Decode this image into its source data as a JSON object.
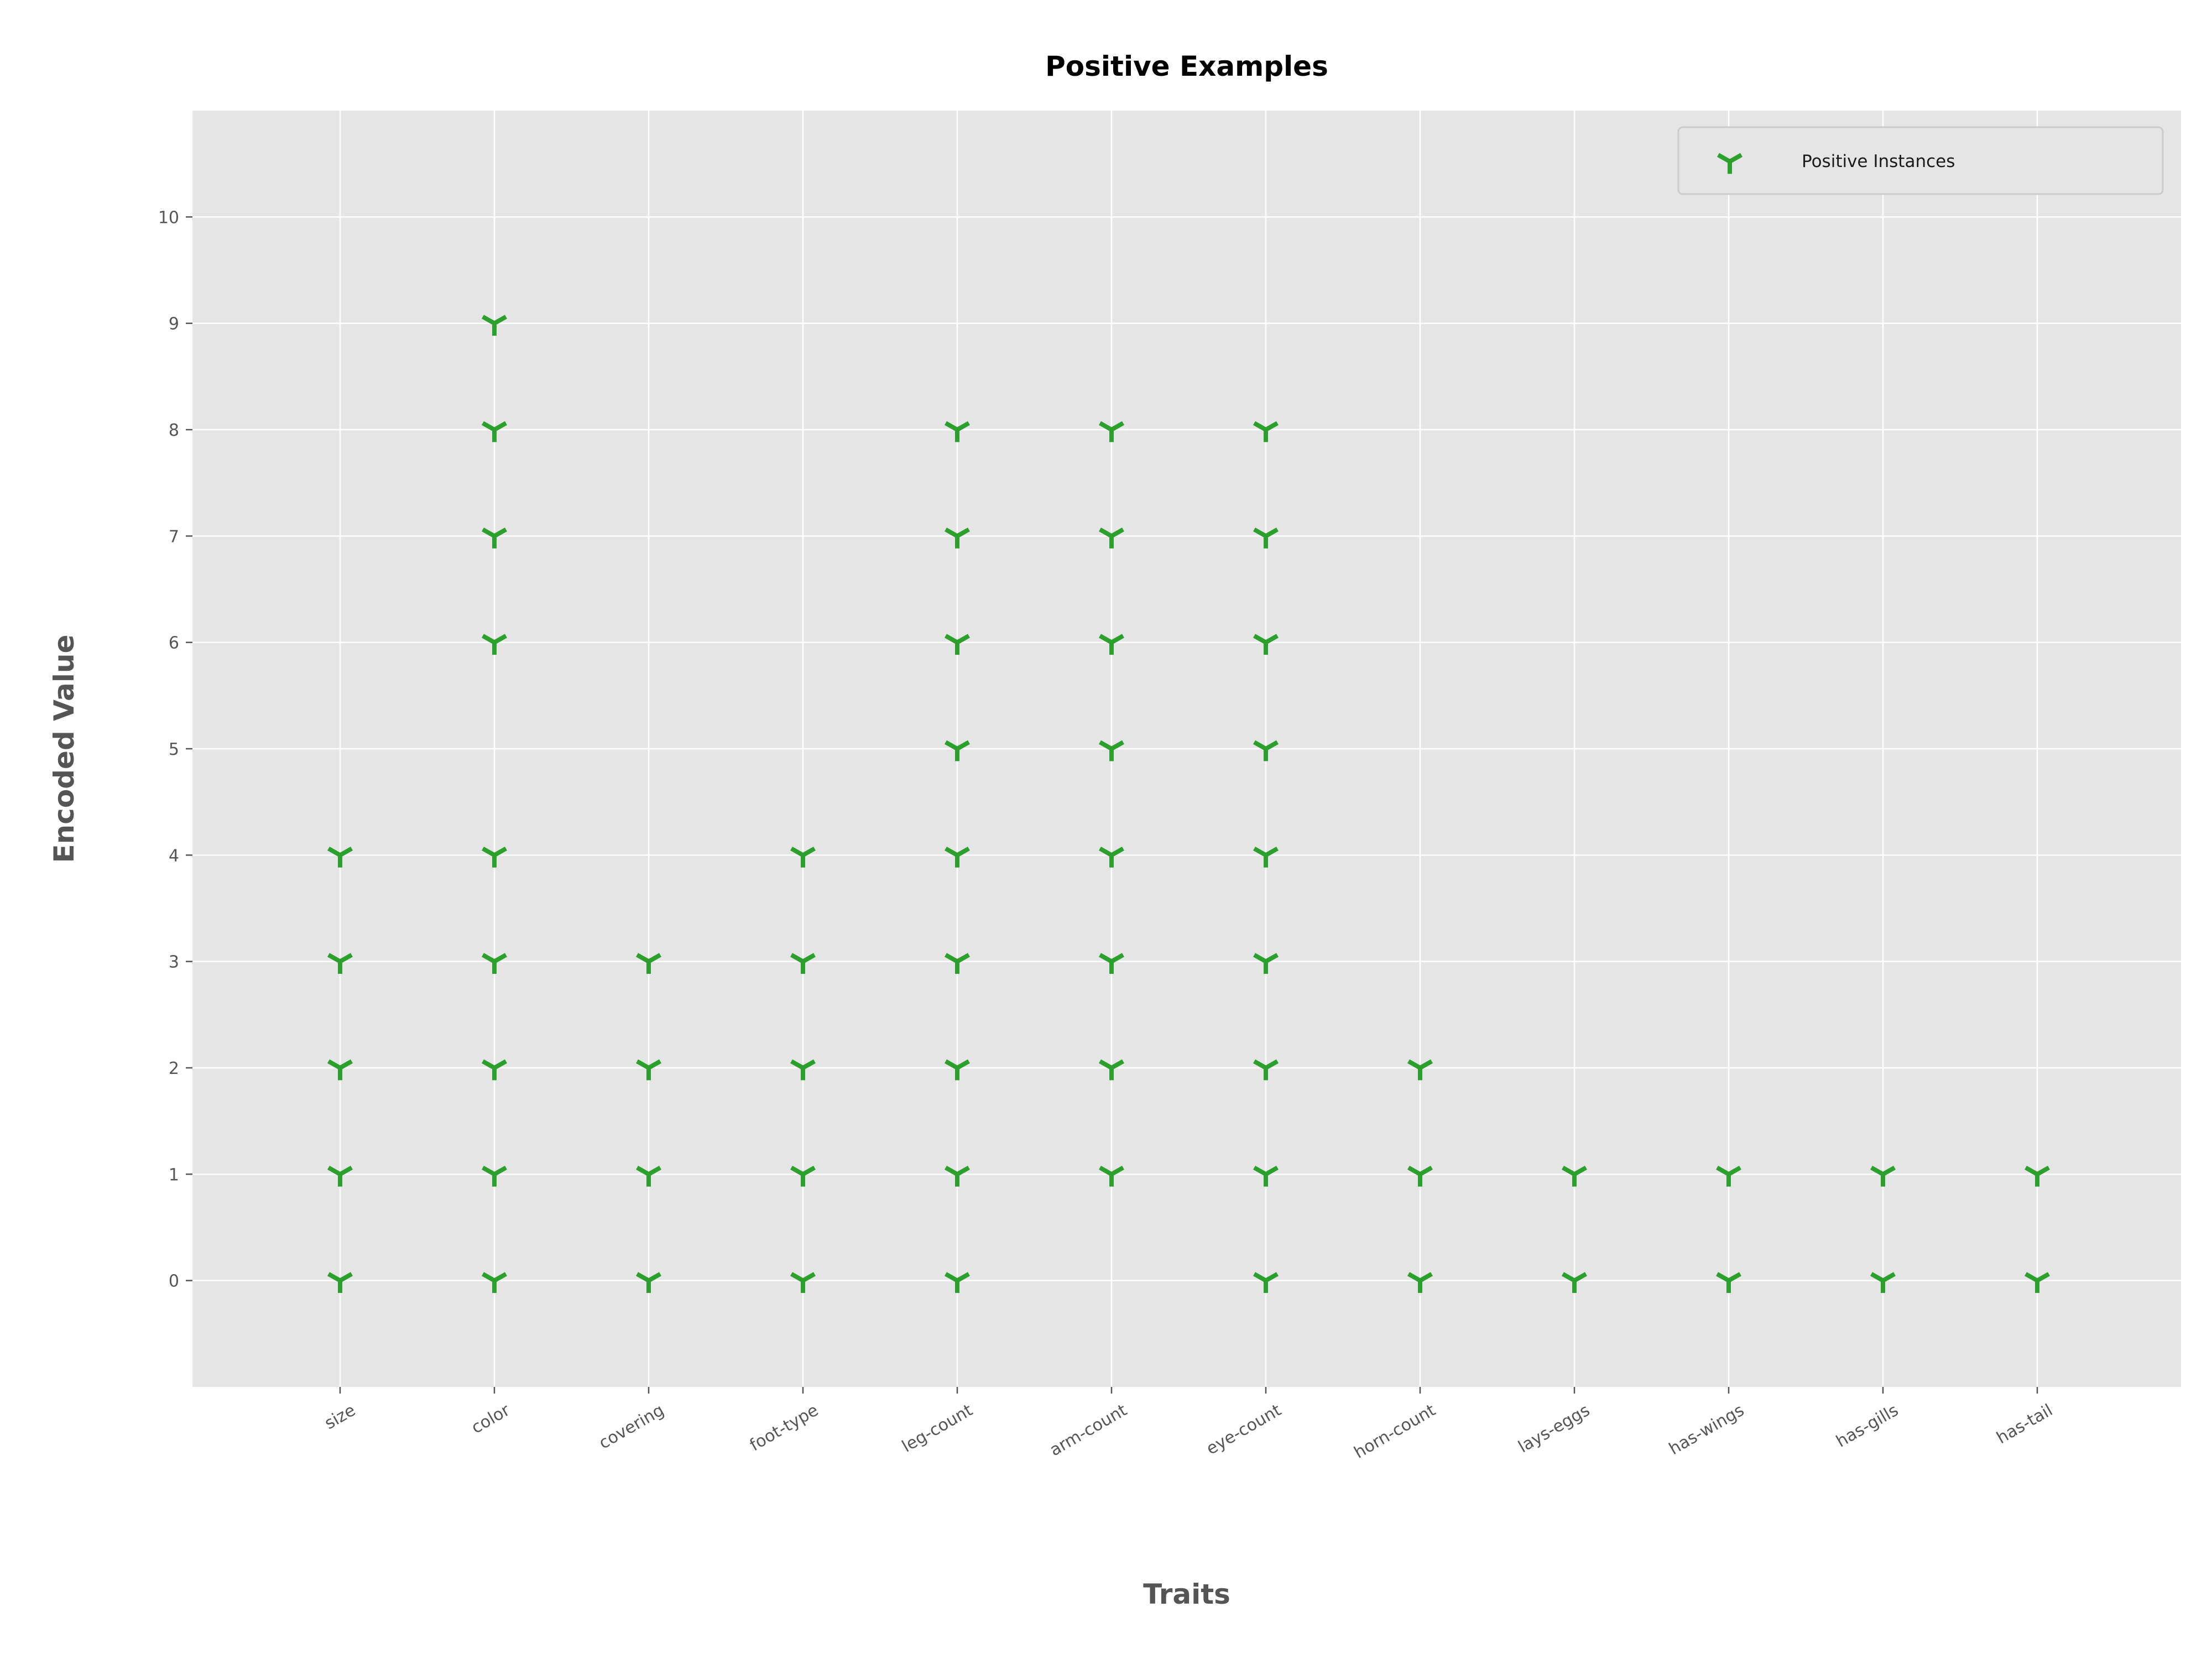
{
  "chart_data": {
    "type": "scatter",
    "title": "Positive Examples",
    "xlabel": "Traits",
    "ylabel": "Encoded Value",
    "categories": [
      "size",
      "color",
      "covering",
      "foot-type",
      "leg-count",
      "arm-count",
      "eye-count",
      "horn-count",
      "lays-eggs",
      "has-wings",
      "has-gills",
      "has-tail"
    ],
    "yticks": [
      0,
      1,
      2,
      3,
      4,
      5,
      6,
      7,
      8,
      9,
      10
    ],
    "ylim": [
      -1,
      11
    ],
    "grid": true,
    "legend_position": "top-right",
    "series": [
      {
        "name": "Positive Instances",
        "marker": "tri_down",
        "color": "#2ca02c",
        "points": {
          "size": [
            0,
            1,
            2,
            3,
            4
          ],
          "color": [
            0,
            1,
            2,
            3,
            4,
            6,
            7,
            8,
            9
          ],
          "covering": [
            0,
            1,
            2,
            3
          ],
          "foot-type": [
            0,
            1,
            2,
            3,
            4
          ],
          "leg-count": [
            0,
            1,
            2,
            3,
            4,
            5,
            6,
            7,
            8
          ],
          "arm-count": [
            1,
            2,
            3,
            4,
            5,
            6,
            7,
            8
          ],
          "eye-count": [
            0,
            1,
            2,
            3,
            4,
            5,
            6,
            7,
            8
          ],
          "horn-count": [
            0,
            1,
            2
          ],
          "lays-eggs": [
            0,
            1
          ],
          "has-wings": [
            0,
            1
          ],
          "has-gills": [
            0,
            1
          ],
          "has-tail": [
            0,
            1
          ]
        }
      }
    ]
  },
  "colors": {
    "plot_background": "#e5e5e5",
    "grid": "#ffffff",
    "marker": "#2ca02c",
    "tick_text": "#555555"
  }
}
